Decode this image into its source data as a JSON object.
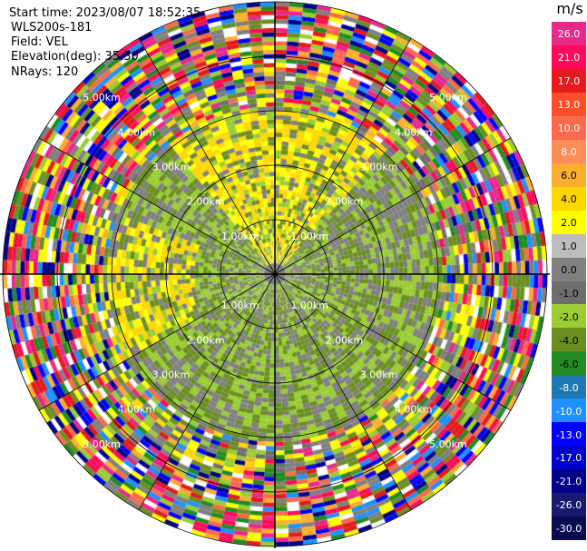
{
  "info": {
    "start_time": "Start time: 2023/08/07 18:52:35",
    "site": "WLS200s-181",
    "field": "Field: VEL",
    "elevation": "Elevation(deg): 35.30",
    "nrays": "NRays: 120"
  },
  "colorbar": {
    "unit": "m/s",
    "levels": [
      {
        "label": "26.0",
        "color": "#e7298a"
      },
      {
        "label": "21.0",
        "color": "#ff0a5a"
      },
      {
        "label": "17.0",
        "color": "#e41a1c"
      },
      {
        "label": "13.0",
        "color": "#fc4e2a"
      },
      {
        "label": "10.0",
        "color": "#fb6a4a"
      },
      {
        "label": "8.0",
        "color": "#fc8d59"
      },
      {
        "label": "6.0",
        "color": "#fdae30"
      },
      {
        "label": "4.0",
        "color": "#ffd700"
      },
      {
        "label": "2.0",
        "color": "#ffff00"
      },
      {
        "label": "1.0",
        "color": "#bdbdbd"
      },
      {
        "label": "0.0",
        "color": "#808080"
      },
      {
        "label": "-1.0",
        "color": "#6e6e6e"
      },
      {
        "label": "-2.0",
        "color": "#9acd32"
      },
      {
        "label": "-4.0",
        "color": "#6b8e23"
      },
      {
        "label": "-6.0",
        "color": "#228b22"
      },
      {
        "label": "-8.0",
        "color": "#1e78b4"
      },
      {
        "label": "-10.0",
        "color": "#1e90ff"
      },
      {
        "label": "-13.0",
        "color": "#0000ff"
      },
      {
        "label": "-17.0",
        "color": "#0000cd"
      },
      {
        "label": "-21.0",
        "color": "#00008b"
      },
      {
        "label": "-26.0",
        "color": "#191970"
      },
      {
        "label": "-30.0",
        "color": "#0b0b50"
      }
    ]
  },
  "range_rings": [
    "1.00km",
    "2.00km",
    "3.00km",
    "4.00km",
    "5.00km"
  ],
  "ppi": {
    "nrays": 120,
    "inner_colors": [
      "#808080",
      "#9acd32",
      "#6b8e23",
      "#ffff00",
      "#ffd700",
      "#6e6e6e"
    ],
    "outer_colors": [
      "#e7298a",
      "#ff0a5a",
      "#e41a1c",
      "#0000ff",
      "#00008b",
      "#228b22",
      "#9acd32",
      "#ffff00",
      "#808080",
      "#ffffff",
      "#1e90ff",
      "#fb6a4a",
      "#6b8e23",
      "#fdae30"
    ]
  }
}
